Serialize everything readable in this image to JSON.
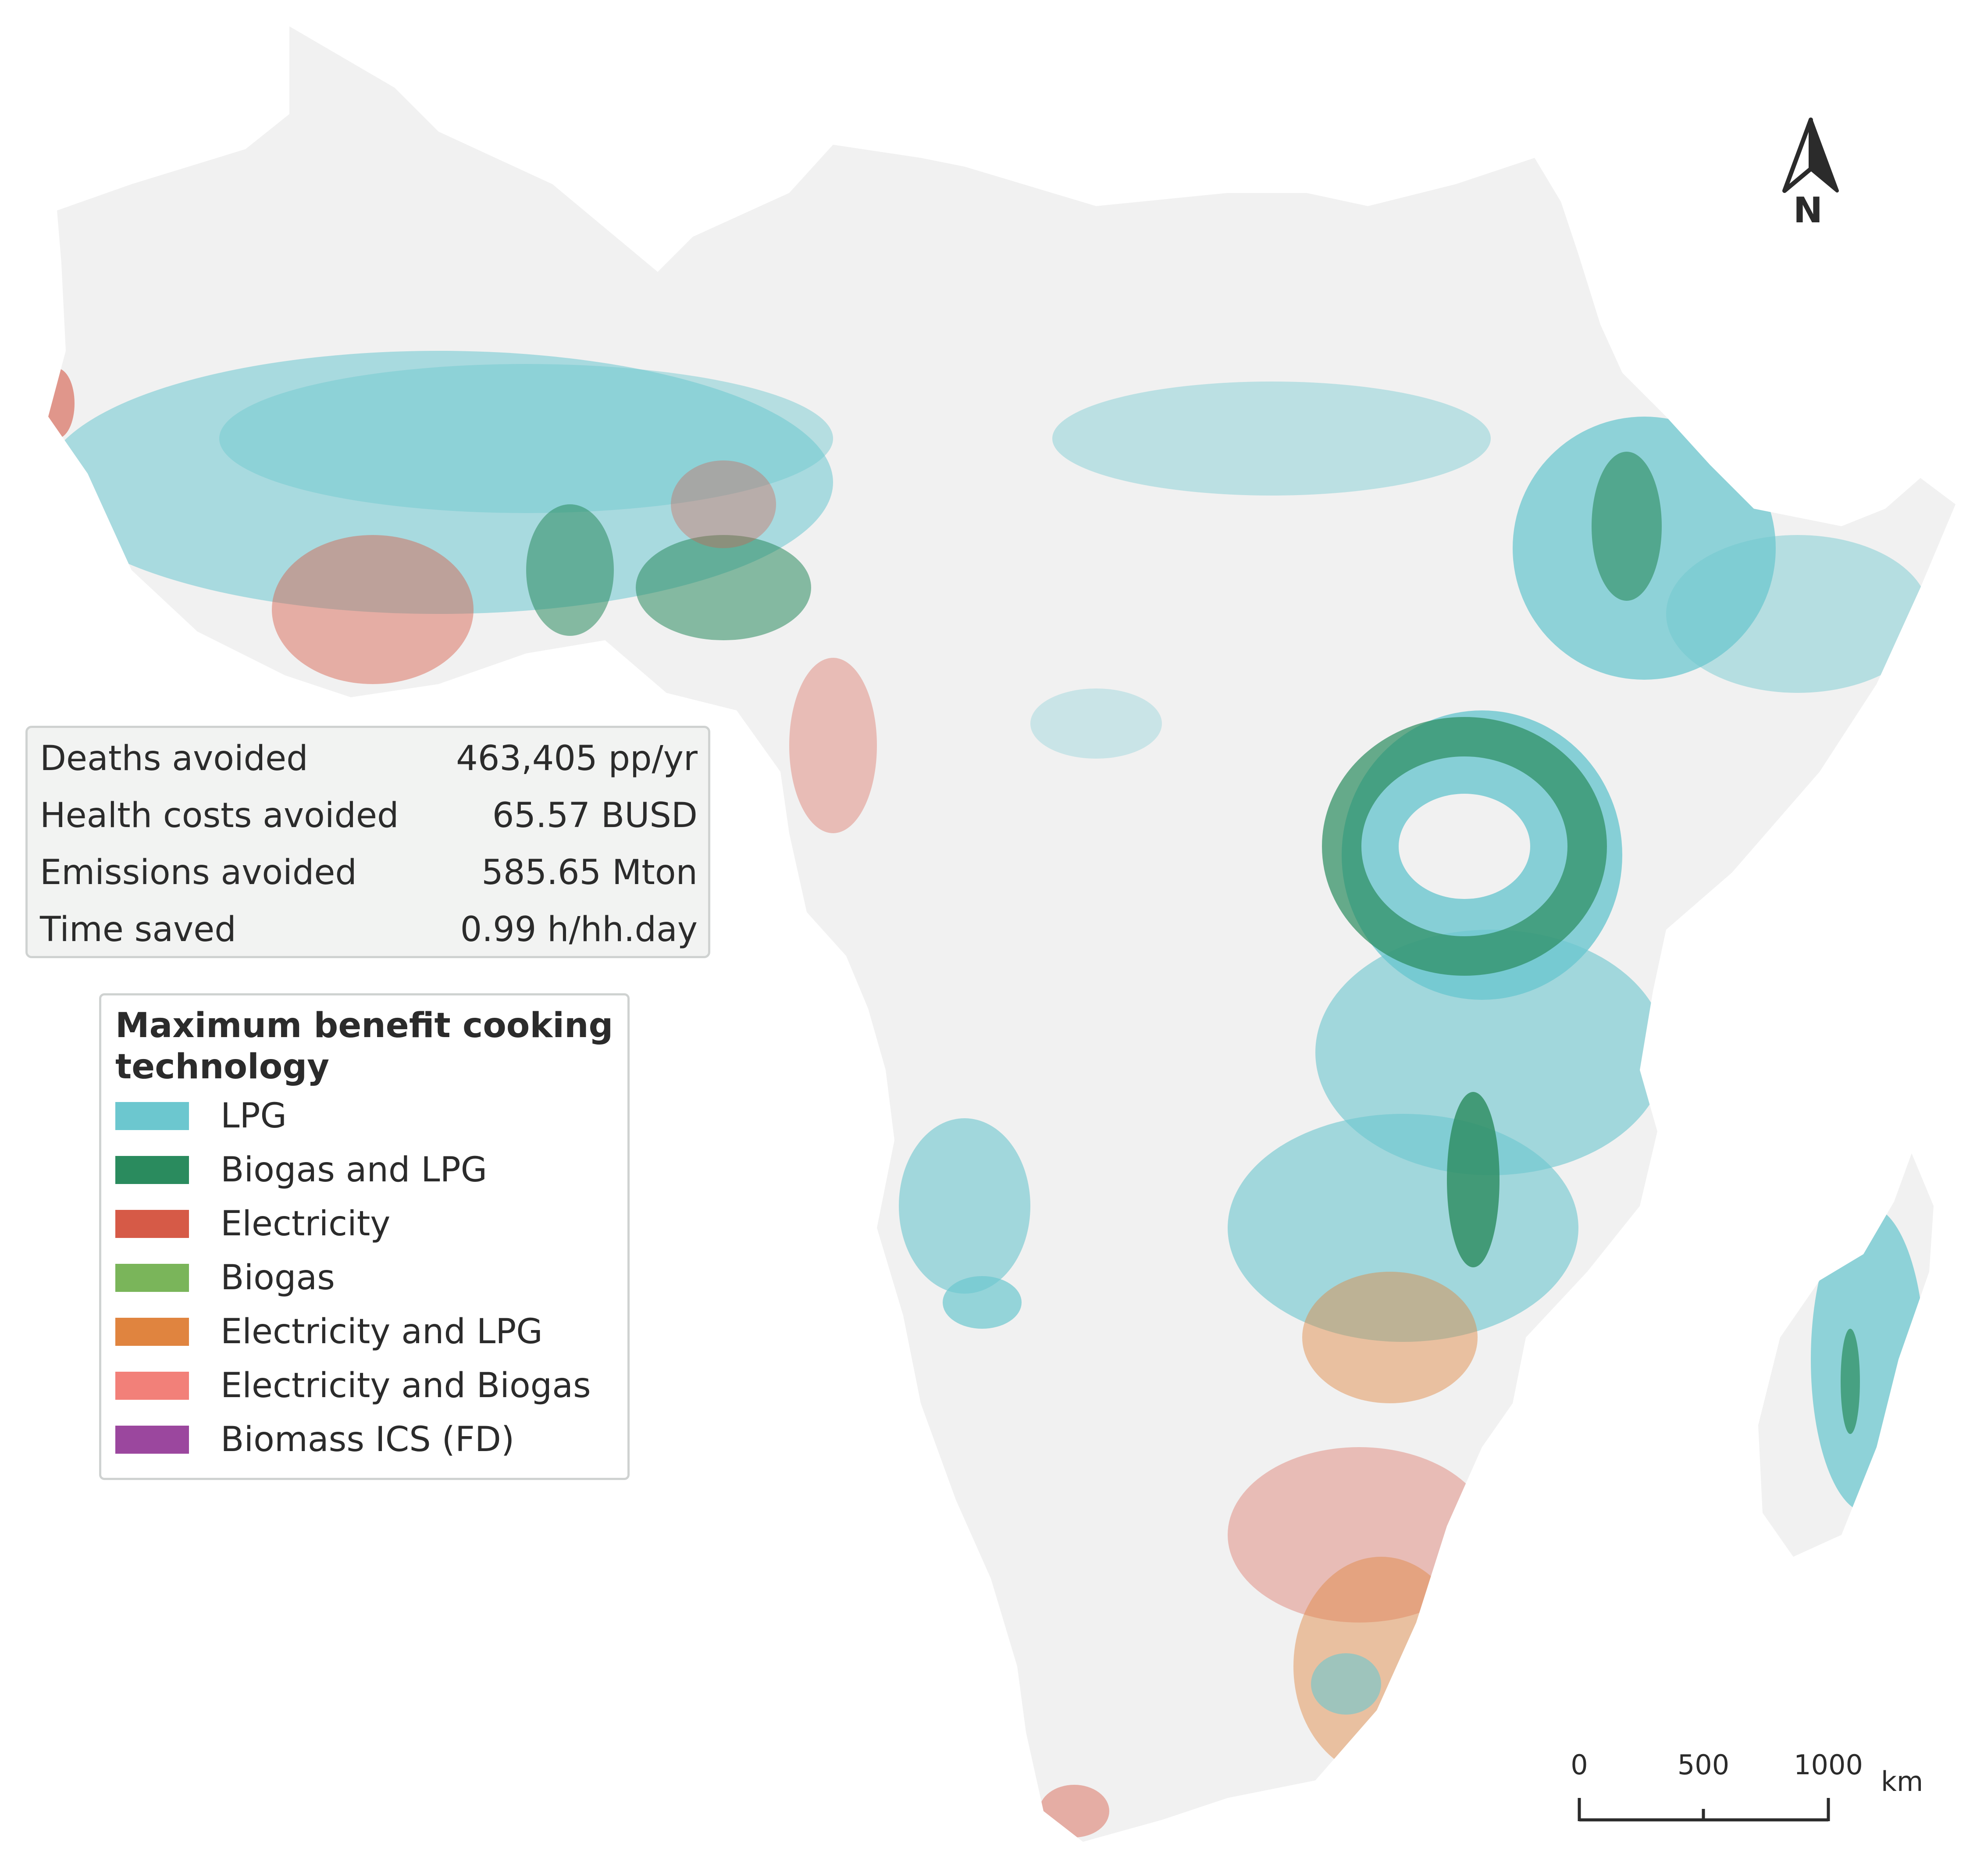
{
  "stats": {
    "rows": [
      {
        "label": "Deaths avoided",
        "value": "463,405 pp/yr"
      },
      {
        "label": "Health costs avoided",
        "value": "65.57 BUSD"
      },
      {
        "label": "Emissions avoided",
        "value": "585.65 Mton"
      },
      {
        "label": "Time saved",
        "value": "0.99 h/hh.day"
      }
    ]
  },
  "legend": {
    "title": "Maximum benefit cooking technology",
    "items": [
      {
        "label": "LPG",
        "color": "#6cc7cf"
      },
      {
        "label": "Biogas and LPG",
        "color": "#2a8b5e"
      },
      {
        "label": "Electricity",
        "color": "#d65a47"
      },
      {
        "label": "Biogas",
        "color": "#7ab55a"
      },
      {
        "label": "Electricity and LPG",
        "color": "#e0843f"
      },
      {
        "label": "Electricity and Biogas",
        "color": "#f28079"
      },
      {
        "label": "Biomass ICS (FD)",
        "color": "#9b479e"
      }
    ]
  },
  "north_arrow": {
    "label": "N"
  },
  "scale_bar": {
    "ticks": [
      "0",
      "500",
      "1000"
    ],
    "unit": "km"
  },
  "colors": {
    "land": "#f1f1f1",
    "text": "#2b2b2b",
    "box_border": "#cfd2d1"
  }
}
